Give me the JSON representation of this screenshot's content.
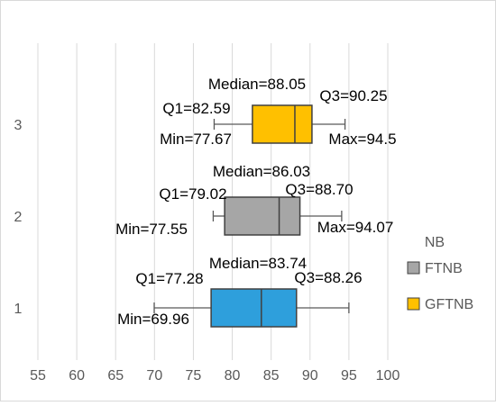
{
  "chart_data": {
    "type": "boxplot",
    "orientation": "horizontal",
    "categories": [
      "3",
      "2",
      "1"
    ],
    "xlim": [
      55,
      100
    ],
    "xticks": [
      55,
      60,
      65,
      70,
      75,
      80,
      85,
      90,
      95,
      100
    ],
    "grid": true,
    "legend": {
      "title": "NB",
      "placement": "right",
      "entries": [
        {
          "name": "FTNB",
          "color": "#a6a6a6"
        },
        {
          "name": "GFTNB",
          "color": "#ffc000"
        }
      ]
    },
    "boxes": [
      {
        "category": "3",
        "min": 77.67,
        "q1": 82.59,
        "median": 88.05,
        "q3": 90.25,
        "max": 94.5,
        "color": "#ffc000",
        "labels": {
          "median": "Median=88.05",
          "q1": "Q1=82.59",
          "q3": "Q3=90.25",
          "min": "Min=77.67",
          "max": "Max=94.5"
        }
      },
      {
        "category": "2",
        "min": 77.55,
        "q1": 79.02,
        "median": 86.03,
        "q3": 88.7,
        "max": 94.07,
        "color": "#a6a6a6",
        "labels": {
          "median": "Median=86.03",
          "q1": "Q1=79.02",
          "q3": "Q3=88.70",
          "min": "Min=77.55",
          "max": "Max=94.07"
        }
      },
      {
        "category": "1",
        "min": 69.96,
        "q1": 77.28,
        "median": 83.74,
        "q3": 88.26,
        "max": 95,
        "color": "#2e9fdc",
        "labels": {
          "median": "Median=83.74",
          "q1": "Q1=77.28",
          "q3": "Q3=88.26",
          "min": "Min=69.96",
          "max": ""
        }
      }
    ],
    "colors": {
      "grid": "#d9d9d9",
      "border": "#d9d9d9",
      "tick_text": "#595959",
      "label_text": "#000000",
      "stroke": "#404040",
      "whisker": "#595959"
    }
  }
}
